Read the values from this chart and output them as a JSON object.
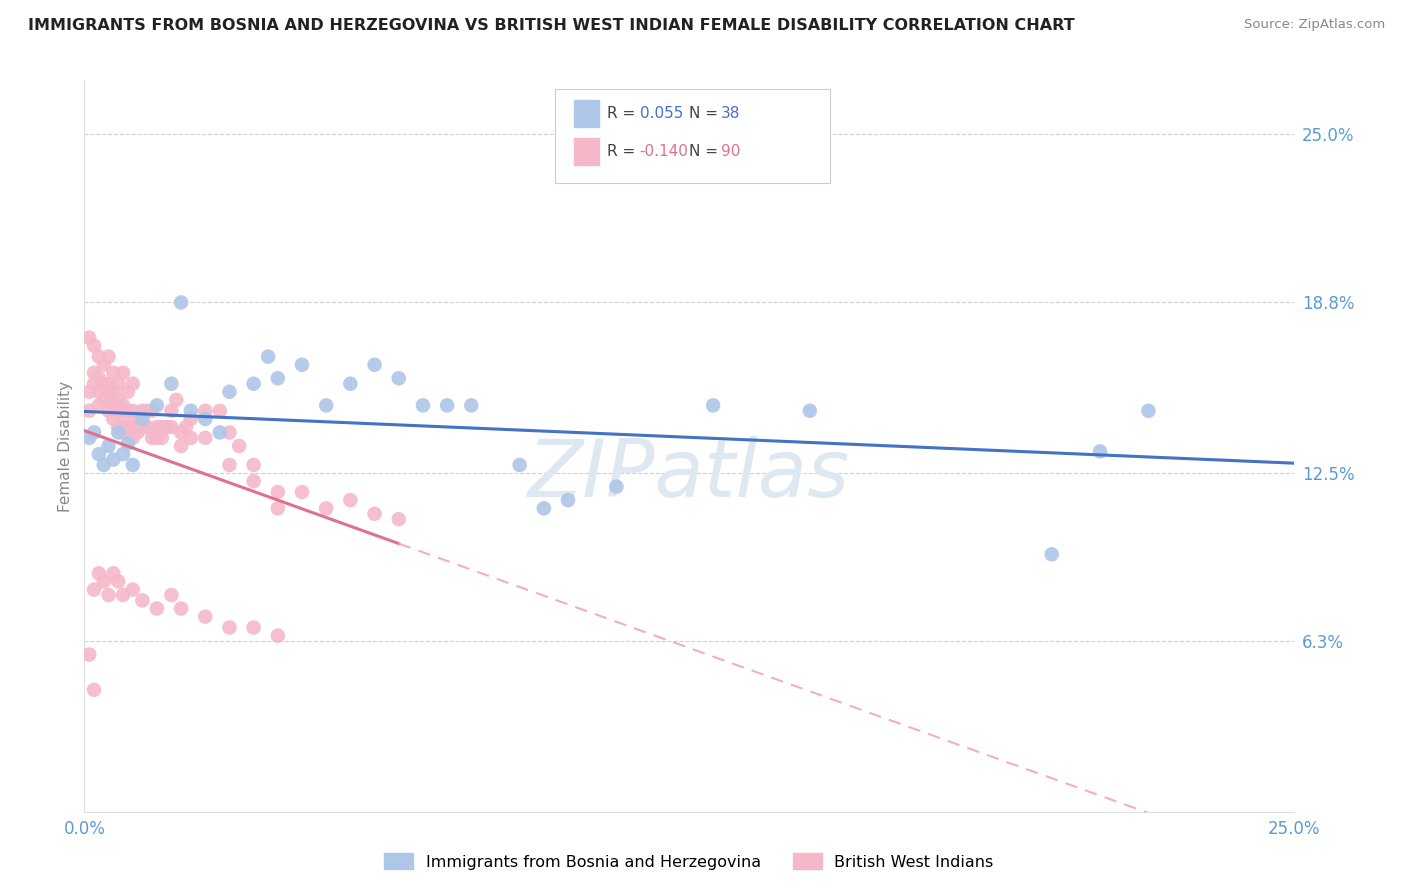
{
  "title": "IMMIGRANTS FROM BOSNIA AND HERZEGOVINA VS BRITISH WEST INDIAN FEMALE DISABILITY CORRELATION CHART",
  "source": "Source: ZipAtlas.com",
  "ylabel": "Female Disability",
  "right_yticks": [
    "25.0%",
    "18.8%",
    "12.5%",
    "6.3%"
  ],
  "right_ytick_vals": [
    0.25,
    0.188,
    0.125,
    0.063
  ],
  "legend_blue_r": "0.055",
  "legend_blue_n": "38",
  "legend_pink_r": "-0.140",
  "legend_pink_n": "90",
  "xlim": [
    0.0,
    0.25
  ],
  "ylim": [
    0.0,
    0.27
  ],
  "blue_x": [
    0.001,
    0.002,
    0.003,
    0.004,
    0.005,
    0.006,
    0.007,
    0.008,
    0.009,
    0.01,
    0.012,
    0.015,
    0.018,
    0.02,
    0.022,
    0.025,
    0.028,
    0.03,
    0.035,
    0.038,
    0.04,
    0.045,
    0.05,
    0.055,
    0.06,
    0.065,
    0.07,
    0.075,
    0.08,
    0.09,
    0.095,
    0.1,
    0.11,
    0.13,
    0.15,
    0.2,
    0.21,
    0.22
  ],
  "blue_y": [
    0.138,
    0.14,
    0.132,
    0.128,
    0.135,
    0.13,
    0.14,
    0.132,
    0.136,
    0.128,
    0.145,
    0.15,
    0.158,
    0.188,
    0.148,
    0.145,
    0.14,
    0.155,
    0.158,
    0.168,
    0.16,
    0.165,
    0.15,
    0.158,
    0.165,
    0.16,
    0.15,
    0.15,
    0.15,
    0.128,
    0.112,
    0.115,
    0.12,
    0.15,
    0.148,
    0.095,
    0.133,
    0.148
  ],
  "pink_x": [
    0.001,
    0.001,
    0.002,
    0.002,
    0.003,
    0.003,
    0.003,
    0.004,
    0.004,
    0.005,
    0.005,
    0.005,
    0.006,
    0.006,
    0.006,
    0.007,
    0.007,
    0.007,
    0.008,
    0.008,
    0.008,
    0.009,
    0.009,
    0.01,
    0.01,
    0.01,
    0.011,
    0.011,
    0.012,
    0.012,
    0.013,
    0.013,
    0.014,
    0.014,
    0.015,
    0.015,
    0.016,
    0.016,
    0.017,
    0.018,
    0.018,
    0.019,
    0.02,
    0.02,
    0.021,
    0.022,
    0.022,
    0.025,
    0.025,
    0.028,
    0.03,
    0.03,
    0.032,
    0.035,
    0.035,
    0.04,
    0.04,
    0.045,
    0.05,
    0.055,
    0.06,
    0.065,
    0.001,
    0.002,
    0.003,
    0.004,
    0.005,
    0.006,
    0.007,
    0.008,
    0.009,
    0.01,
    0.002,
    0.003,
    0.004,
    0.005,
    0.006,
    0.007,
    0.008,
    0.01,
    0.012,
    0.015,
    0.018,
    0.02,
    0.025,
    0.03,
    0.035,
    0.04,
    0.001,
    0.002
  ],
  "pink_y": [
    0.155,
    0.148,
    0.162,
    0.158,
    0.16,
    0.155,
    0.15,
    0.158,
    0.152,
    0.158,
    0.155,
    0.148,
    0.155,
    0.15,
    0.145,
    0.152,
    0.148,
    0.142,
    0.15,
    0.145,
    0.14,
    0.148,
    0.142,
    0.148,
    0.142,
    0.138,
    0.145,
    0.14,
    0.148,
    0.142,
    0.148,
    0.142,
    0.148,
    0.138,
    0.142,
    0.138,
    0.142,
    0.138,
    0.142,
    0.148,
    0.142,
    0.152,
    0.14,
    0.135,
    0.142,
    0.145,
    0.138,
    0.148,
    0.138,
    0.148,
    0.14,
    0.128,
    0.135,
    0.128,
    0.122,
    0.118,
    0.112,
    0.118,
    0.112,
    0.115,
    0.11,
    0.108,
    0.175,
    0.172,
    0.168,
    0.165,
    0.168,
    0.162,
    0.158,
    0.162,
    0.155,
    0.158,
    0.082,
    0.088,
    0.085,
    0.08,
    0.088,
    0.085,
    0.08,
    0.082,
    0.078,
    0.075,
    0.08,
    0.075,
    0.072,
    0.068,
    0.068,
    0.065,
    0.058,
    0.045
  ],
  "blue_color": "#aec6e8",
  "pink_color": "#f5b8c8",
  "blue_line_color": "#4472c4",
  "pink_line_color": "#e07090",
  "pink_dash_color": "#f0b0c0",
  "grid_color": "#d0d0d0",
  "right_axis_color": "#5b9bd5",
  "watermark_color": "#dde8f0"
}
